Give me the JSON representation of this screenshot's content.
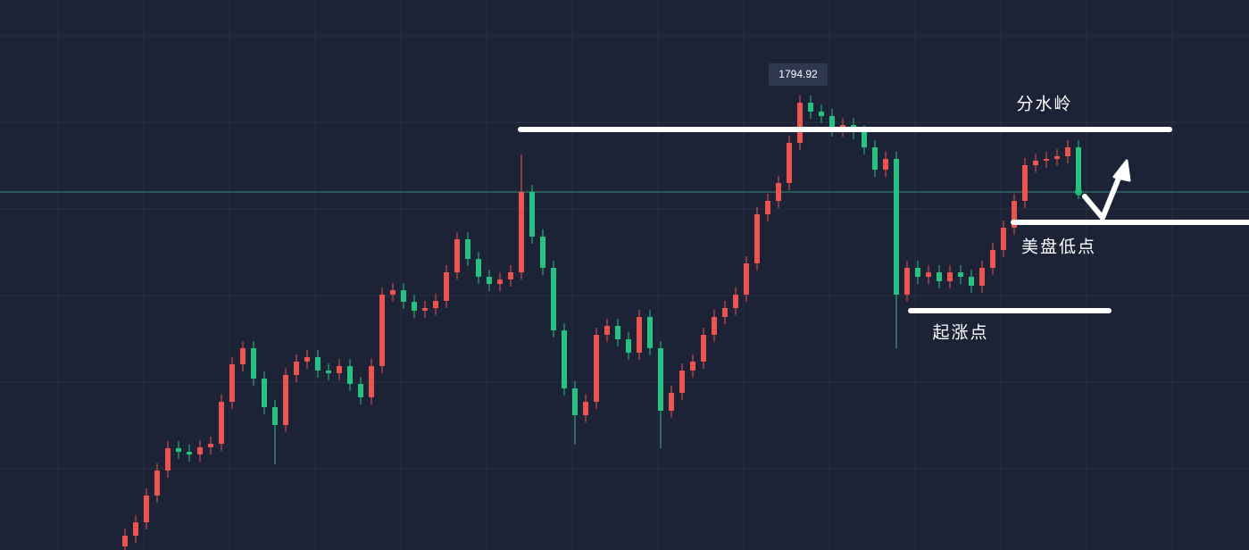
{
  "chart_data": {
    "type": "candlestick",
    "peak_label": "1794.92",
    "annotations": [
      "分水岭",
      "美盘低点",
      "起涨点"
    ],
    "up_color": "#ef5350",
    "down_color": "#26c281",
    "price_line_color": "#2f8f7a",
    "ylim": [
      1744.0,
      1805.6
    ],
    "open": [
      1744.4,
      1745.6,
      1747.1,
      1750.1,
      1752.9,
      1755.4,
      1755.0,
      1754.7,
      1755.5,
      1755.9,
      1760.6,
      1764.8,
      1766.6,
      1763.2,
      1760.0,
      1758.0,
      1763.6,
      1765.1,
      1765.6,
      1764.1,
      1763.8,
      1764.6,
      1762.6,
      1761.1,
      1764.6,
      1772.6,
      1773.1,
      1771.8,
      1770.8,
      1771.1,
      1771.9,
      1775.1,
      1778.8,
      1776.6,
      1774.6,
      1773.8,
      1774.3,
      1775.1,
      1784.1,
      1779.1,
      1775.6,
      1768.6,
      1762.1,
      1759.1,
      1760.6,
      1768.1,
      1769.1,
      1767.6,
      1766.1,
      1770.1,
      1766.6,
      1759.6,
      1761.6,
      1764.1,
      1765.1,
      1768.1,
      1770.1,
      1771.1,
      1772.6,
      1776.1,
      1781.6,
      1783.1,
      1785.1,
      1789.6,
      1794.1,
      1793.1,
      1792.6,
      1791.1,
      1791.6,
      1790.8,
      1789.1,
      1786.6,
      1787.8,
      1772.6,
      1775.6,
      1774.6,
      1775.1,
      1774.1,
      1775.1,
      1774.6,
      1773.6,
      1775.6,
      1777.6,
      1780.1,
      1783.1,
      1787.1,
      1787.6,
      1787.8,
      1788.1,
      1789.1
    ],
    "high": [
      1746.4,
      1747.9,
      1750.9,
      1753.7,
      1756.2,
      1756.2,
      1755.8,
      1756.3,
      1756.7,
      1761.4,
      1765.6,
      1767.4,
      1767.4,
      1764.0,
      1760.8,
      1764.4,
      1765.9,
      1766.4,
      1766.4,
      1764.9,
      1765.4,
      1765.4,
      1763.4,
      1765.4,
      1773.4,
      1773.9,
      1773.9,
      1772.6,
      1771.9,
      1772.7,
      1775.9,
      1779.6,
      1779.6,
      1777.4,
      1775.4,
      1775.1,
      1775.9,
      1788.3,
      1784.9,
      1779.9,
      1776.4,
      1769.4,
      1762.9,
      1761.4,
      1768.9,
      1769.9,
      1769.9,
      1768.4,
      1770.9,
      1770.9,
      1767.4,
      1762.4,
      1764.9,
      1765.9,
      1768.9,
      1770.9,
      1771.9,
      1773.4,
      1776.9,
      1782.4,
      1783.9,
      1785.9,
      1790.4,
      1794.92,
      1794.9,
      1793.9,
      1793.4,
      1792.4,
      1792.4,
      1791.6,
      1789.9,
      1788.6,
      1788.6,
      1776.4,
      1776.4,
      1775.9,
      1775.9,
      1775.9,
      1775.9,
      1775.4,
      1776.4,
      1778.4,
      1780.9,
      1783.9,
      1787.9,
      1788.4,
      1788.6,
      1788.9,
      1789.9,
      1789.9
    ],
    "low": [
      1743.6,
      1744.8,
      1746.3,
      1749.3,
      1752.1,
      1754.2,
      1753.9,
      1753.9,
      1754.7,
      1755.1,
      1759.8,
      1764.0,
      1762.4,
      1759.2,
      1753.6,
      1757.2,
      1762.8,
      1764.3,
      1763.3,
      1763.0,
      1763.0,
      1761.8,
      1760.3,
      1760.3,
      1763.8,
      1771.8,
      1771.0,
      1770.0,
      1770.0,
      1770.3,
      1771.1,
      1774.3,
      1775.8,
      1773.8,
      1773.0,
      1773.0,
      1773.5,
      1774.3,
      1778.3,
      1774.8,
      1767.8,
      1761.3,
      1755.8,
      1758.3,
      1759.8,
      1767.3,
      1766.8,
      1765.3,
      1765.3,
      1765.8,
      1755.4,
      1758.8,
      1760.8,
      1763.3,
      1764.3,
      1767.3,
      1769.3,
      1770.3,
      1771.8,
      1775.3,
      1780.8,
      1782.3,
      1784.3,
      1788.8,
      1792.3,
      1791.8,
      1790.3,
      1790.3,
      1790.0,
      1788.3,
      1785.8,
      1785.8,
      1766.6,
      1771.8,
      1773.8,
      1773.8,
      1773.3,
      1773.3,
      1773.8,
      1772.8,
      1772.8,
      1774.8,
      1776.8,
      1779.3,
      1782.3,
      1786.3,
      1786.8,
      1787.0,
      1787.3,
      1783.3
    ],
    "close": [
      1745.6,
      1747.1,
      1750.1,
      1752.9,
      1755.4,
      1755.0,
      1754.7,
      1755.5,
      1755.9,
      1760.6,
      1764.8,
      1766.6,
      1763.2,
      1760.0,
      1758.0,
      1763.6,
      1765.1,
      1765.6,
      1764.1,
      1763.8,
      1764.6,
      1762.6,
      1761.1,
      1764.6,
      1772.6,
      1773.1,
      1771.8,
      1770.8,
      1771.1,
      1771.9,
      1775.1,
      1778.8,
      1776.6,
      1774.6,
      1773.8,
      1774.3,
      1775.1,
      1784.1,
      1779.1,
      1775.6,
      1768.6,
      1762.1,
      1759.1,
      1760.6,
      1768.1,
      1769.1,
      1767.6,
      1766.1,
      1770.1,
      1766.6,
      1759.6,
      1761.6,
      1764.1,
      1765.1,
      1768.1,
      1770.1,
      1771.1,
      1772.6,
      1776.1,
      1781.6,
      1783.1,
      1785.1,
      1789.6,
      1794.1,
      1793.1,
      1792.6,
      1791.1,
      1791.6,
      1790.8,
      1789.1,
      1786.6,
      1787.8,
      1772.6,
      1775.6,
      1774.6,
      1775.1,
      1774.1,
      1775.1,
      1774.6,
      1773.6,
      1775.6,
      1777.6,
      1780.1,
      1783.1,
      1787.1,
      1787.6,
      1787.8,
      1788.1,
      1789.1,
      1784.1
    ]
  }
}
